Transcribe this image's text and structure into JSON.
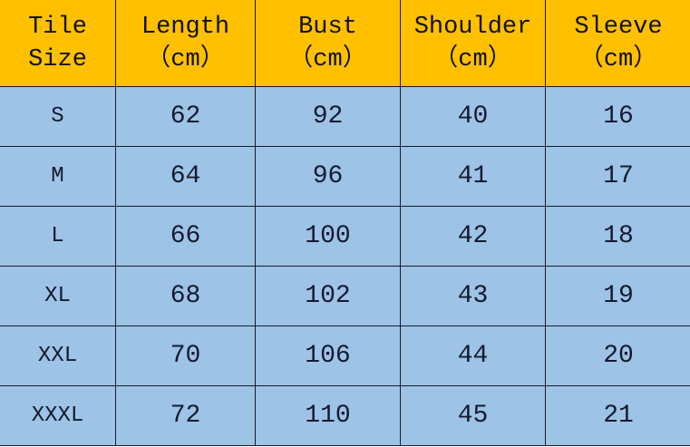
{
  "header": [
    {
      "line1": "Tile",
      "line2": "Size"
    },
    {
      "line1": "Length",
      "line2": "（cm）"
    },
    {
      "line1": "Bust",
      "line2": "（cm）"
    },
    {
      "line1": "Shoulder",
      "line2": "（cm）"
    },
    {
      "line1": "Sleeve",
      "line2": "（cm）"
    }
  ],
  "rows": [
    [
      "S",
      "62",
      "92",
      "40",
      "16"
    ],
    [
      "M",
      "64",
      "96",
      "41",
      "17"
    ],
    [
      "L",
      "66",
      "100",
      "42",
      "18"
    ],
    [
      "XL",
      "68",
      "102",
      "43",
      "19"
    ],
    [
      "XXL",
      "70",
      "106",
      "44",
      "20"
    ],
    [
      "XXXL",
      "72",
      "110",
      "45",
      "21"
    ]
  ],
  "colors": {
    "header_bg": "#FFC000",
    "body_bg": "#9DC3E6"
  }
}
